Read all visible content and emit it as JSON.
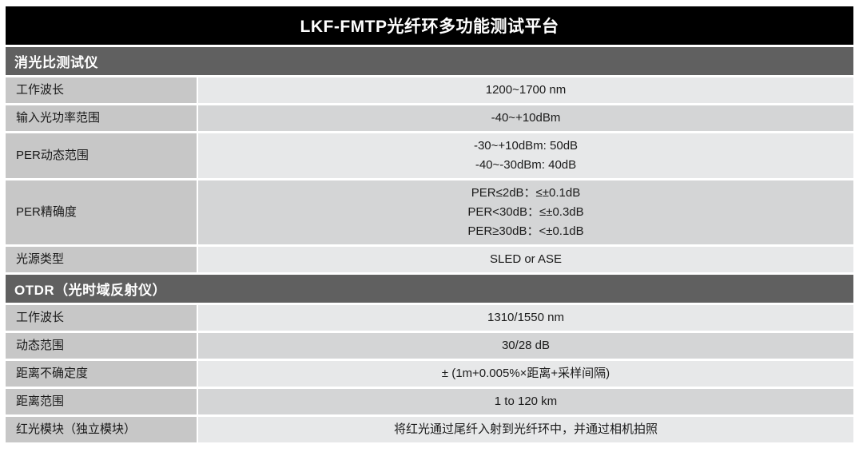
{
  "title": "LKF-FMTP光纤环多功能测试平台",
  "colors": {
    "title_bg": "#000000",
    "section_bg": "#606060",
    "label_bg": "#c7c7c7",
    "value_bg_odd": "#e7e8e9",
    "value_bg_even": "#d4d5d6"
  },
  "sections": [
    {
      "header": "消光比测试仪",
      "rows": [
        {
          "label": "工作波长",
          "values": [
            "1200~1700 nm"
          ]
        },
        {
          "label": "输入光功率范围",
          "values": [
            "-40~+10dBm"
          ]
        },
        {
          "label": "PER动态范围",
          "values": [
            "-30~+10dBm: 50dB",
            "-40~-30dBm: 40dB"
          ]
        },
        {
          "label": "PER精确度",
          "values": [
            "PER≤2dB：≤±0.1dB",
            "PER<30dB：≤±0.3dB",
            "PER≥30dB：<±0.1dB"
          ]
        },
        {
          "label": "光源类型",
          "values": [
            "SLED or ASE"
          ]
        }
      ]
    },
    {
      "header": "OTDR（光时域反射仪）",
      "rows": [
        {
          "label": "工作波长",
          "values": [
            "1310/1550 nm"
          ]
        },
        {
          "label": "动态范围",
          "values": [
            "30/28 dB"
          ]
        },
        {
          "label": "距离不确定度",
          "values": [
            "± (1m+0.005%×距离+采样间隔)"
          ]
        },
        {
          "label": "距离范围",
          "values": [
            "1 to 120 km"
          ]
        },
        {
          "label": "红光模块（独立模块）",
          "values": [
            "将红光通过尾纤入射到光纤环中，并通过相机拍照"
          ]
        }
      ]
    }
  ]
}
